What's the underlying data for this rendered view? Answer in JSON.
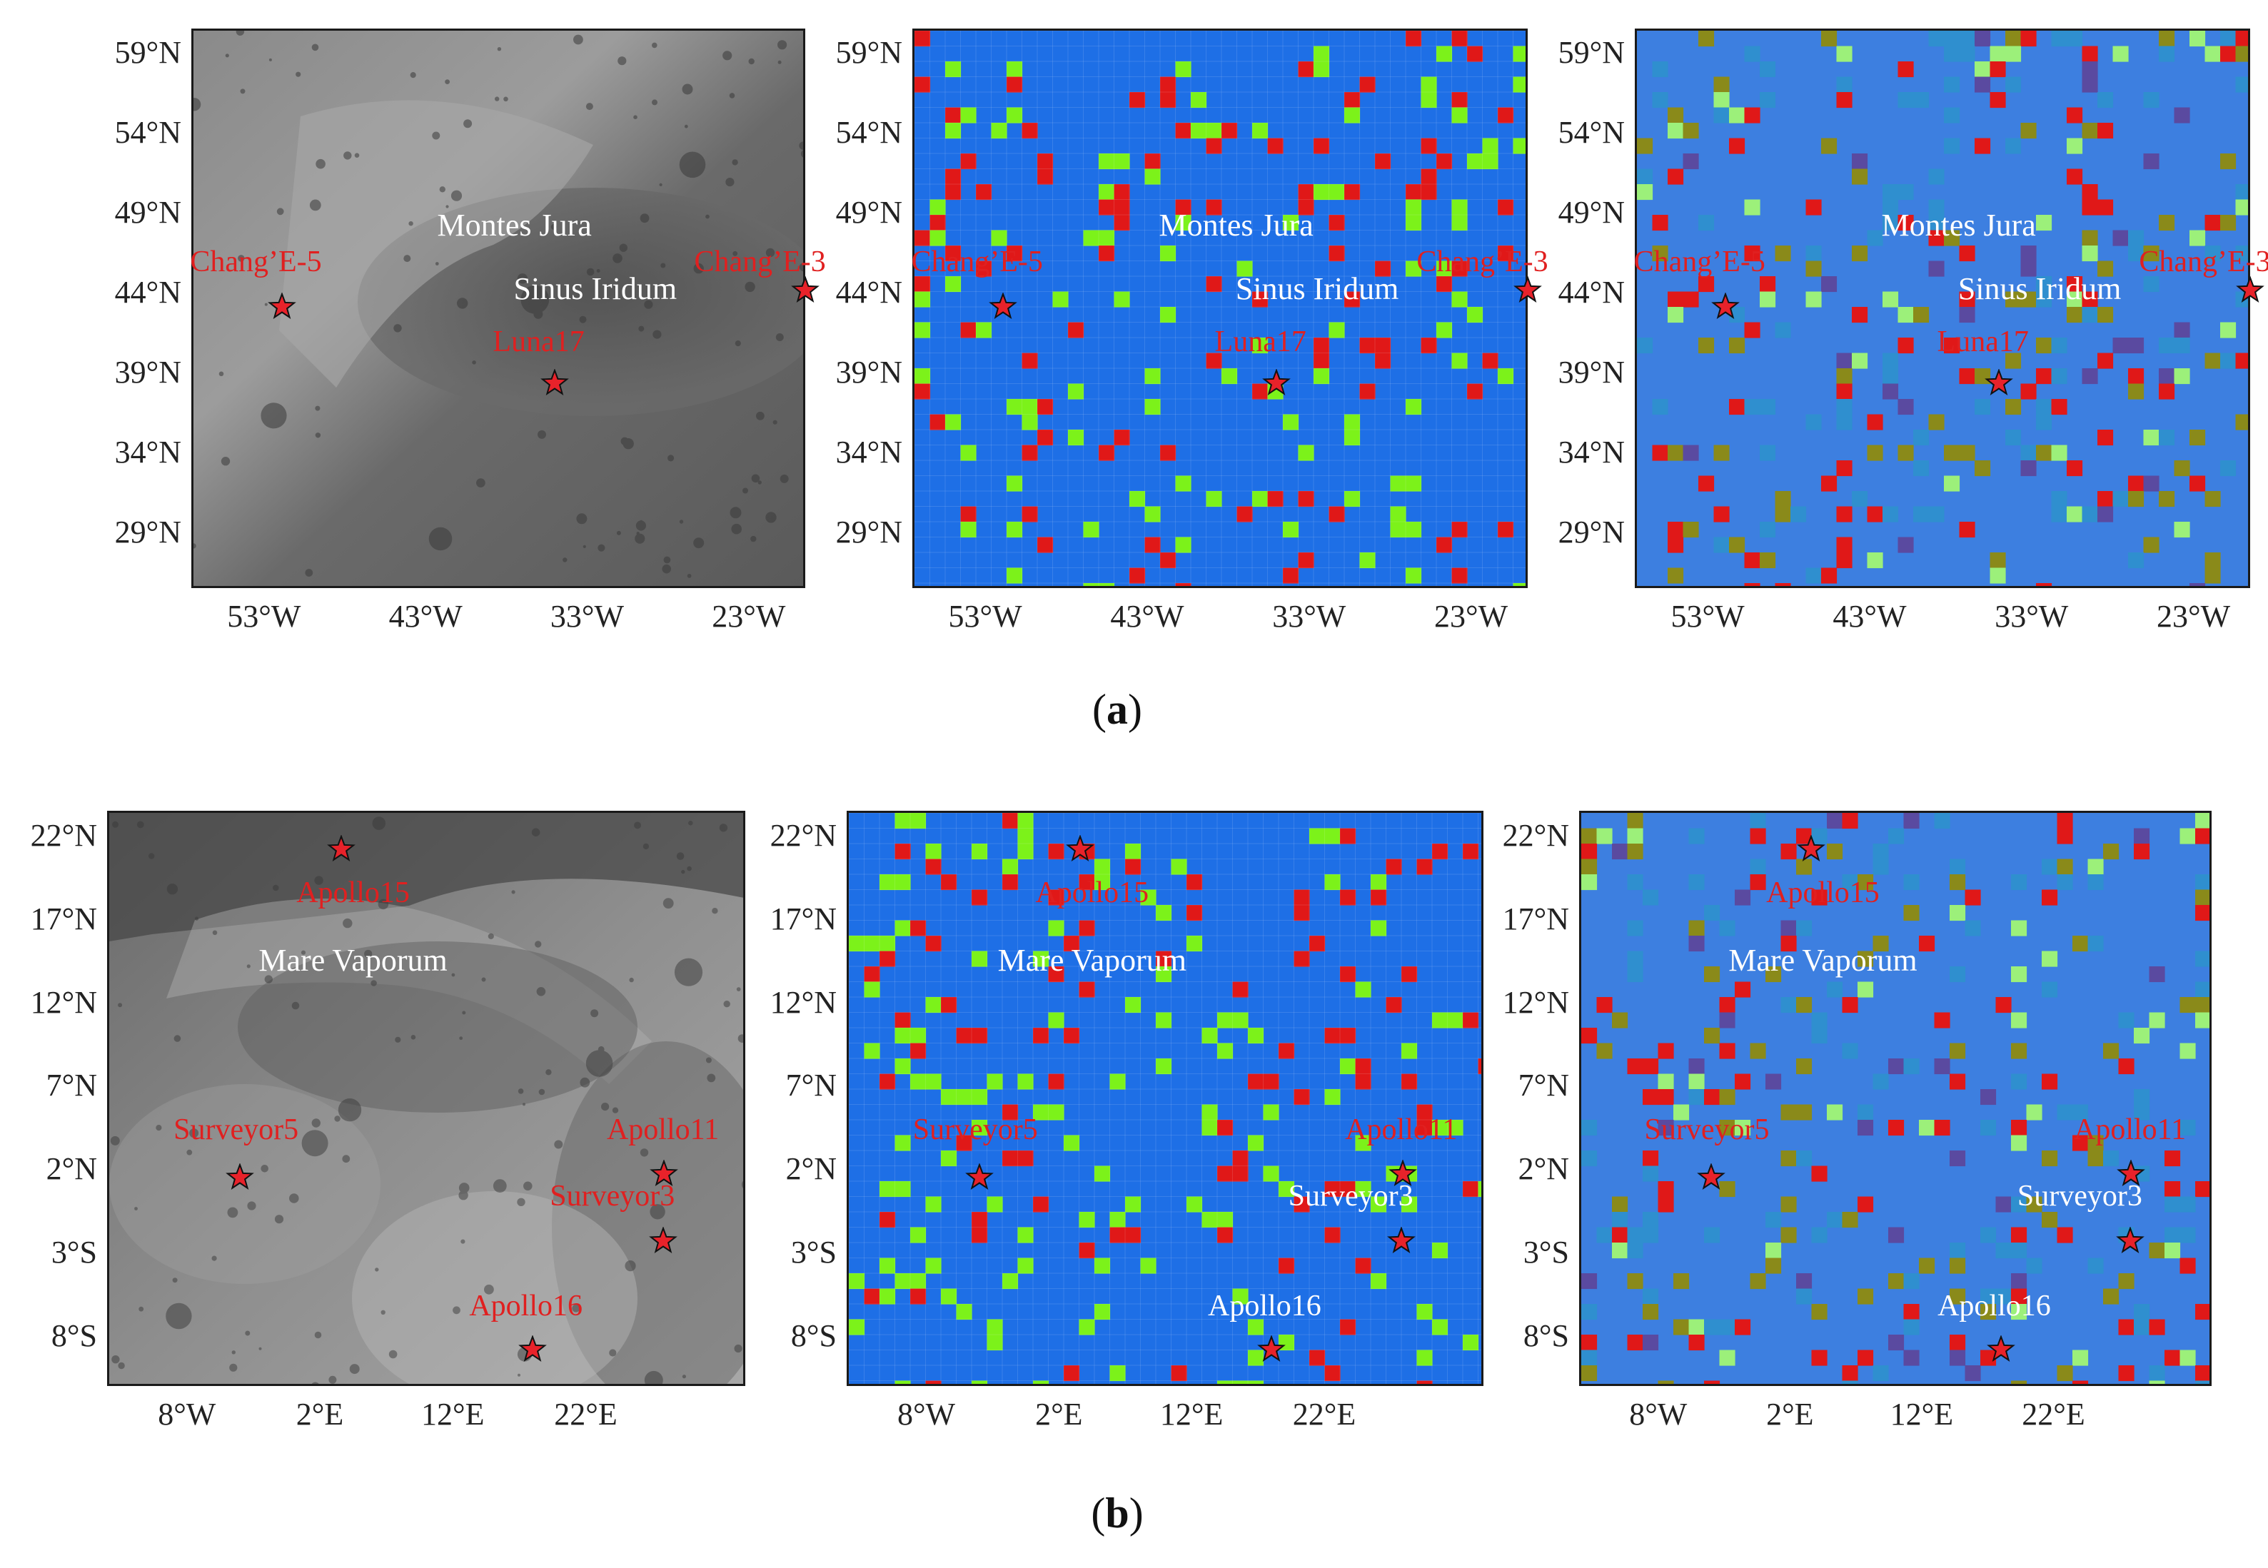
{
  "colors": {
    "grid_background": "#1e6fe6",
    "grid_red": "#e01818",
    "grid_green": "#7cf21a",
    "heat_background": "#3d7fe0",
    "heat_red": "#e01818",
    "heat_olive": "#8a8a1a",
    "heat_light": "#9cf07a",
    "heat_teal": "#2f8fcf",
    "heat_purple": "#5a4aa0",
    "star_fill": "#e8222a",
    "moon_dark": "#5e5e5e",
    "moon_light": "#9a9a9a"
  },
  "row_a": {
    "caption_letter": "a",
    "lat_ticks": [
      "59°N",
      "54°N",
      "49°N",
      "44°N",
      "39°N",
      "34°N",
      "29°N"
    ],
    "lon_ticks": [
      "53°W",
      "43°W",
      "33°W",
      "23°W"
    ],
    "lat_values": [
      59,
      54,
      49,
      44,
      39,
      34,
      29
    ],
    "lon_values": [
      -53,
      -43,
      -33,
      -23
    ],
    "lat_range": [
      25.5,
      60.5
    ],
    "lon_range": [
      -57.5,
      -19.5
    ],
    "regions": [
      {
        "label": "Montes Jura",
        "lon": -37.5,
        "lat": 48.2
      },
      {
        "label": "Sinus Iridum",
        "lon": -32.5,
        "lat": 44.2
      }
    ],
    "sites": [
      {
        "label": "Chang’E-5",
        "lon": -51.9,
        "lat": 43.1,
        "label_lon": -53.5,
        "label_lat": 45.8
      },
      {
        "label": "Chang’E-3",
        "lon": -19.5,
        "lat": 44.1,
        "label_lon": -22.3,
        "label_lat": 45.8
      },
      {
        "label": "Luna17",
        "lon": -35.0,
        "lat": 38.3,
        "label_lon": -36.0,
        "label_lat": 40.8
      }
    ]
  },
  "row_b": {
    "caption_letter": "b",
    "lat_ticks": [
      "22°N",
      "17°N",
      "12°N",
      "7°N",
      "2°N",
      "3°S",
      "8°S"
    ],
    "lon_ticks": [
      "8°W",
      "2°E",
      "12°E",
      "22°E"
    ],
    "lat_values": [
      22,
      17,
      12,
      7,
      2,
      -3,
      -8
    ],
    "lon_values": [
      -8,
      2,
      12,
      22
    ],
    "lat_range": [
      -11.0,
      23.5
    ],
    "lon_range": [
      -14.0,
      34.0
    ],
    "regions": [
      {
        "label": "Mare Vaporum",
        "lon": 4.5,
        "lat": 14.5
      }
    ],
    "sites": [
      {
        "label": "Apollo15",
        "lon": 3.6,
        "lat": 21.2,
        "label_lon": 4.5,
        "label_lat": 18.5
      },
      {
        "label": "Surveyor5",
        "lon": -4.0,
        "lat": 1.5,
        "label_lon": -4.3,
        "label_lat": 4.3
      },
      {
        "label": "Apollo11",
        "lon": 27.9,
        "lat": 1.7,
        "label_lon": 27.8,
        "label_lat": 4.3
      },
      {
        "label": "Surveyor3",
        "lon": 27.8,
        "lat": -2.3,
        "label_lon": 24.0,
        "label_lat": 0.3
      },
      {
        "label": "Apollo16",
        "lon": 18.0,
        "lat": -8.8,
        "label_lon": 17.5,
        "label_lat": -6.3
      }
    ]
  }
}
